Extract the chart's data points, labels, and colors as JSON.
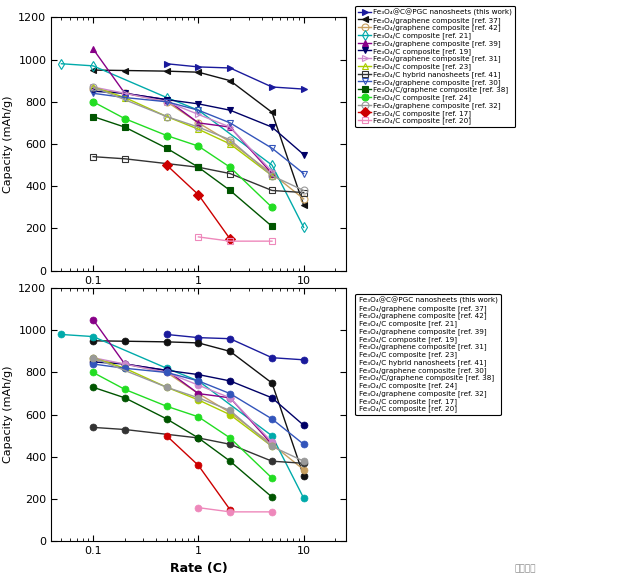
{
  "series": [
    {
      "label": "Fe₃O₄@C@PGC nanosheets (this work)",
      "color": "#1a1a9c",
      "marker": ">",
      "mfc": "#1a1a9c",
      "x": [
        0.5,
        1.0,
        2.0,
        5.0,
        10.0,
        20.0
      ],
      "y": [
        980,
        965,
        960,
        870,
        860,
        null
      ]
    },
    {
      "label": "Fe₃O₄/graphene composite [ref. 37]",
      "color": "#111111",
      "marker": "<",
      "mfc": "#111111",
      "x": [
        0.1,
        0.2,
        0.5,
        1.0,
        2.0,
        5.0,
        10.0,
        20.0
      ],
      "y": [
        950,
        948,
        945,
        940,
        900,
        750,
        310,
        null
      ]
    },
    {
      "label": "Fe₃O₄/graphene composite [ref. 42]",
      "color": "#C8A060",
      "marker": "o",
      "mfc": "none",
      "x": [
        0.1,
        0.2,
        0.5,
        1.0,
        2.0,
        5.0,
        10.0
      ],
      "y": [
        860,
        840,
        800,
        700,
        610,
        460,
        340
      ]
    },
    {
      "label": "Fe₃O₄/C composite [ref. 21]",
      "color": "#00AAAA",
      "marker": "d",
      "mfc": "none",
      "x": [
        0.05,
        0.1,
        0.5,
        1.0,
        5.0,
        10.0
      ],
      "y": [
        980,
        970,
        820,
        760,
        500,
        205
      ]
    },
    {
      "label": "Fe₃O₄/graphene composite [ref. 39]",
      "color": "#880088",
      "marker": "^",
      "mfc": "#880088",
      "x": [
        0.1,
        0.2,
        0.5,
        1.0,
        2.0,
        5.0
      ],
      "y": [
        1050,
        840,
        810,
        700,
        680,
        460
      ]
    },
    {
      "label": "Fe₃O₄/C composite [ref. 19]",
      "color": "#000066",
      "marker": "v",
      "mfc": "#000066",
      "x": [
        0.1,
        0.2,
        0.5,
        1.0,
        2.0,
        5.0,
        10.0
      ],
      "y": [
        850,
        840,
        810,
        790,
        760,
        680,
        550
      ]
    },
    {
      "label": "Fe₃O₄/graphene composite [ref. 31]",
      "color": "#CC88CC",
      "marker": ">",
      "mfc": "none",
      "x": [
        0.1,
        0.2,
        0.5,
        1.0,
        2.0,
        5.0
      ],
      "y": [
        870,
        840,
        800,
        740,
        680,
        470
      ]
    },
    {
      "label": "Fe₃O₄/C composite [ref. 23]",
      "color": "#AACC00",
      "marker": "^",
      "mfc": "none",
      "x": [
        0.1,
        0.2,
        0.5,
        1.0,
        2.0,
        5.0
      ],
      "y": [
        870,
        820,
        730,
        670,
        600,
        450
      ]
    },
    {
      "label": "Fe₃O₄/C hybrid nanosheets [ref. 41]",
      "color": "#333333",
      "marker": "s",
      "mfc": "none",
      "x": [
        0.1,
        0.2,
        1.0,
        2.0,
        5.0,
        10.0
      ],
      "y": [
        540,
        530,
        490,
        460,
        380,
        370
      ]
    },
    {
      "label": "Fe₃O₄/graphene composite [ref. 30]",
      "color": "#3355BB",
      "marker": "v",
      "mfc": "none",
      "x": [
        0.1,
        0.2,
        0.5,
        1.0,
        2.0,
        5.0,
        10.0
      ],
      "y": [
        840,
        820,
        800,
        760,
        700,
        580,
        460
      ]
    },
    {
      "label": "Fe₃O₄/C/graphene composite [ref. 38]",
      "color": "#005500",
      "marker": "s",
      "mfc": "#005500",
      "x": [
        0.1,
        0.2,
        0.5,
        1.0,
        2.0,
        5.0
      ],
      "y": [
        730,
        680,
        580,
        490,
        380,
        210
      ]
    },
    {
      "label": "Fe₃O₄/C composite [ref. 24]",
      "color": "#22DD22",
      "marker": "o",
      "mfc": "#22DD22",
      "x": [
        0.1,
        0.2,
        0.5,
        1.0,
        2.0,
        5.0
      ],
      "y": [
        800,
        720,
        640,
        590,
        490,
        300
      ]
    },
    {
      "label": "Fe₃O₄/graphene composite [ref. 32]",
      "color": "#999999",
      "marker": "o",
      "mfc": "none",
      "x": [
        0.1,
        0.5,
        1.0,
        2.0,
        5.0,
        10.0
      ],
      "y": [
        870,
        730,
        680,
        620,
        450,
        380
      ]
    },
    {
      "label": "Fe₃O₄/C composite [ref. 17]",
      "color": "#CC0000",
      "marker": "D",
      "mfc": "#CC0000",
      "x": [
        0.5,
        1.0,
        2.0
      ],
      "y": [
        500,
        360,
        150
      ]
    },
    {
      "label": "Fe₃O₄/C composite [ref. 20]",
      "color": "#EE88BB",
      "marker": "s",
      "mfc": "none",
      "x": [
        1.0,
        2.0,
        5.0
      ],
      "y": [
        160,
        140,
        140
      ]
    }
  ],
  "xlim": [
    0.04,
    25
  ],
  "ylim": [
    0,
    1200
  ],
  "yticks": [
    0,
    200,
    400,
    600,
    800,
    1000,
    1200
  ],
  "ylabel": "Capacity (mAh/g)",
  "xlabel": "Rate (C)"
}
